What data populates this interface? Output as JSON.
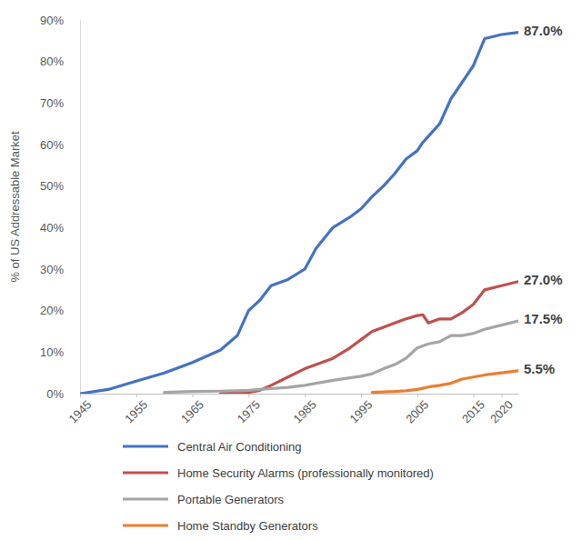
{
  "chart_data": {
    "type": "line",
    "y_label": "% of US Addressable Market",
    "x": [
      1945,
      1950,
      1955,
      1960,
      1965,
      1970,
      1973,
      1975,
      1977,
      1979,
      1982,
      1985,
      1987,
      1990,
      1993,
      1995,
      1997,
      1999,
      2001,
      2003,
      2005,
      2006,
      2007,
      2009,
      2011,
      2013,
      2015,
      2017,
      2020,
      2023
    ],
    "series": [
      {
        "name": "Central Air Conditioning",
        "color": "#4472c4",
        "values": [
          0,
          1,
          3,
          5,
          7.5,
          10.5,
          14,
          20,
          22.5,
          26,
          27.5,
          30,
          35,
          40,
          42.5,
          44.5,
          47.5,
          50,
          53,
          56.5,
          58.5,
          60.5,
          62,
          65,
          71,
          75,
          79,
          85.5,
          86.5,
          87
        ]
      },
      {
        "name": "Home Security Alarms (professionally monitored)",
        "color": "#c0504d",
        "values": [
          null,
          null,
          null,
          null,
          null,
          0,
          0.2,
          0.3,
          0.8,
          2,
          4,
          6,
          7,
          8.5,
          11,
          13,
          15,
          16,
          17,
          18,
          18.8,
          19,
          17,
          18,
          18,
          19.5,
          21.5,
          25,
          26,
          27
        ]
      },
      {
        "name": "Portable Generators",
        "color": "#a5a5a5",
        "values": [
          null,
          null,
          null,
          0.3,
          0.5,
          0.6,
          0.7,
          0.8,
          1,
          1.2,
          1.5,
          2,
          2.5,
          3.2,
          3.8,
          4.2,
          4.8,
          6,
          7,
          8.5,
          11,
          11.5,
          12,
          12.5,
          14,
          14,
          14.5,
          15.5,
          16.5,
          17.5
        ]
      },
      {
        "name": "Home Standby Generators",
        "color": "#ed7d31",
        "values": [
          null,
          null,
          null,
          null,
          null,
          null,
          null,
          null,
          null,
          null,
          null,
          null,
          null,
          null,
          null,
          null,
          0.3,
          0.4,
          0.5,
          0.7,
          1,
          1.3,
          1.6,
          2,
          2.5,
          3.5,
          4,
          4.5,
          5,
          5.5
        ]
      }
    ],
    "xlim": [
      1945,
      2023
    ],
    "ylim": [
      0,
      90
    ],
    "xticks": [
      1945,
      1955,
      1965,
      1975,
      1985,
      1995,
      2005,
      2015,
      2020
    ],
    "yticks": [
      {
        "value": 0,
        "label": "0%"
      },
      {
        "value": 10,
        "label": "10%"
      },
      {
        "value": 20,
        "label": "20%"
      },
      {
        "value": 30,
        "label": "30%"
      },
      {
        "value": 40,
        "label": "40%"
      },
      {
        "value": 50,
        "label": "50%"
      },
      {
        "value": 60,
        "label": "60%"
      },
      {
        "value": 70,
        "label": "70%"
      },
      {
        "value": 80,
        "label": "80%"
      },
      {
        "value": 90,
        "label": "90%"
      }
    ],
    "grid": false,
    "legend": "bottom",
    "annotations": [
      {
        "text": "87.0%",
        "x": 2023,
        "y": 87
      },
      {
        "text": "27.0%",
        "x": 2023,
        "y": 27
      },
      {
        "text": "17.5%",
        "x": 2023,
        "y": 17.5
      },
      {
        "text": "5.5%",
        "x": 2023,
        "y": 5.5
      }
    ]
  }
}
